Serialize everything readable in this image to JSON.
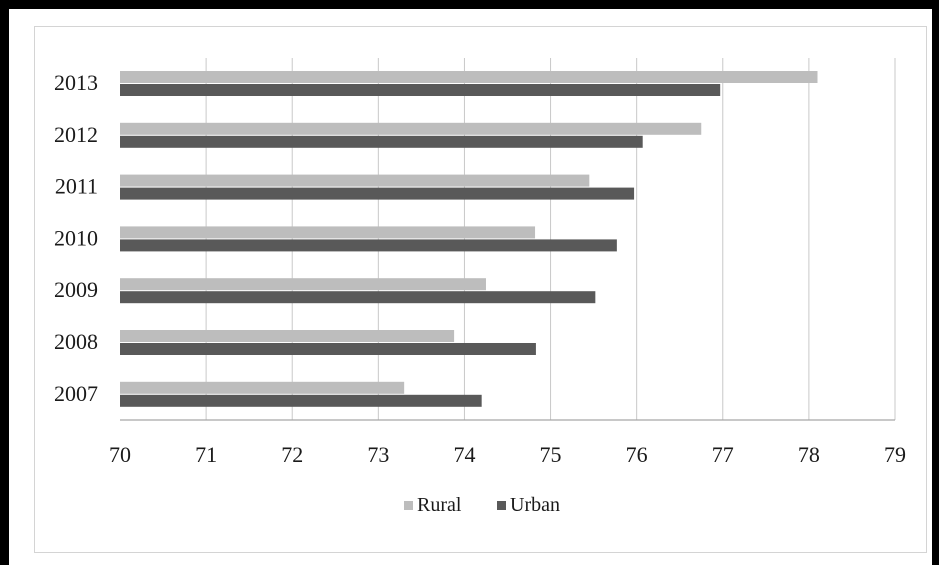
{
  "chart_data": {
    "type": "bar",
    "orientation": "horizontal",
    "categories": [
      "2013",
      "2012",
      "2011",
      "2010",
      "2009",
      "2008",
      "2007"
    ],
    "series": [
      {
        "name": "Rural",
        "values": [
          78.1,
          76.75,
          75.45,
          74.82,
          74.25,
          73.88,
          73.3
        ]
      },
      {
        "name": "Urban",
        "values": [
          76.97,
          76.07,
          75.97,
          75.77,
          75.52,
          74.83,
          74.2
        ]
      }
    ],
    "colors": {
      "Rural": "#bdbdbd",
      "Urban": "#595959"
    },
    "xlim": [
      70,
      79
    ],
    "xticks": [
      "70",
      "71",
      "72",
      "73",
      "74",
      "75",
      "76",
      "77",
      "78",
      "79"
    ],
    "grid": true,
    "legend_position": "bottom"
  }
}
